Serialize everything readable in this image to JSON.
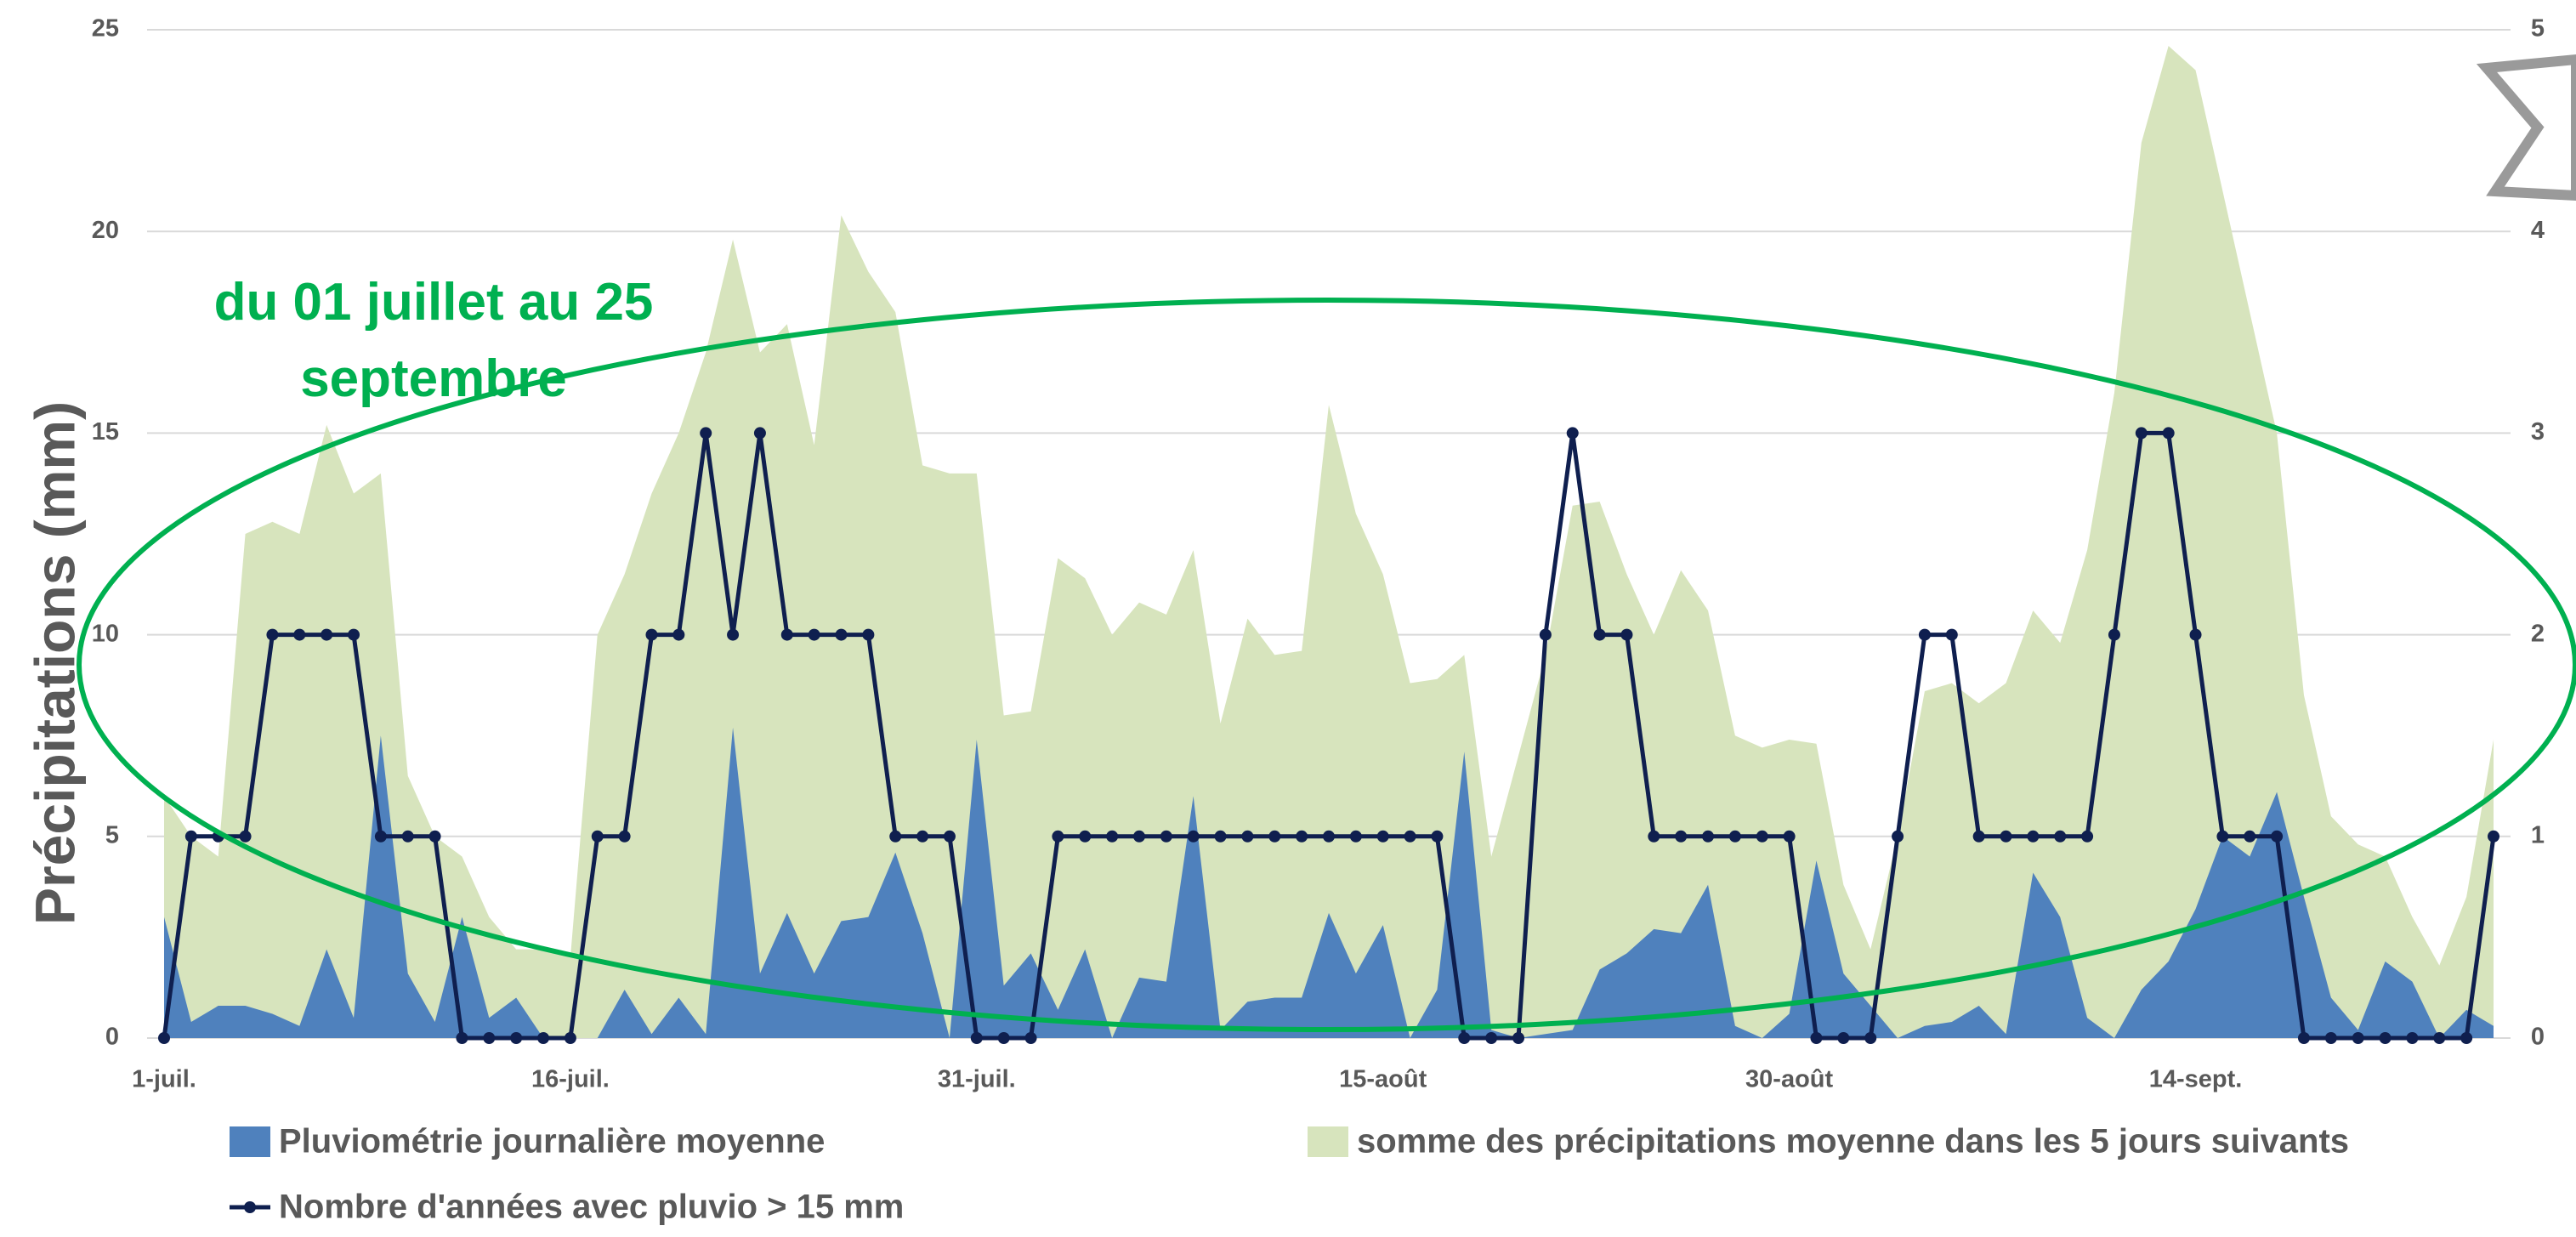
{
  "chart_data": {
    "type": "area",
    "y_label": "Précipitations (mm)",
    "annotation": "du 01 juillet au 25 septembre",
    "categories": [
      "1-juil.",
      null,
      null,
      null,
      null,
      null,
      null,
      null,
      null,
      null,
      null,
      null,
      null,
      null,
      null,
      "16-juil.",
      null,
      null,
      null,
      null,
      null,
      null,
      null,
      null,
      null,
      null,
      null,
      null,
      null,
      null,
      "31-juil.",
      null,
      null,
      null,
      null,
      null,
      null,
      null,
      null,
      null,
      null,
      null,
      null,
      null,
      null,
      "15-août",
      null,
      null,
      null,
      null,
      null,
      null,
      null,
      null,
      null,
      null,
      null,
      null,
      null,
      null,
      "30-août",
      null,
      null,
      null,
      null,
      null,
      null,
      null,
      null,
      null,
      null,
      null,
      null,
      null,
      null,
      "14-sept.",
      null,
      null,
      null,
      null,
      null,
      null,
      null,
      null,
      null,
      null,
      null
    ],
    "ylim": [
      0,
      25
    ],
    "yticks": [
      0,
      5,
      10,
      15,
      20,
      25
    ],
    "y2lim": [
      0,
      5
    ],
    "y2ticks": [
      0,
      1,
      2,
      3,
      4,
      5
    ],
    "grid": true,
    "series": [
      {
        "name": "Pluviométrie journalière moyenne",
        "type": "area",
        "color": "#4f81bd",
        "values": [
          3,
          0.4,
          0.8,
          0.8,
          0.6,
          0.3,
          2.2,
          0.5,
          7.5,
          1.6,
          0.4,
          3,
          0.5,
          1,
          0,
          0,
          0,
          1.2,
          0.1,
          1,
          0.1,
          7.7,
          1.6,
          3.1,
          1.6,
          2.9,
          3,
          4.6,
          2.6,
          0,
          7.4,
          1.3,
          2.1,
          0.7,
          2.2,
          0,
          1.5,
          1.4,
          6,
          0.2,
          0.9,
          1,
          1,
          3.1,
          1.6,
          2.8,
          0,
          1.2,
          7.1,
          0.2,
          0,
          0.1,
          0.2,
          1.7,
          2.1,
          2.7,
          2.6,
          3.8,
          0.3,
          0,
          0.6,
          4.4,
          1.6,
          0.8,
          0,
          0.3,
          0.4,
          0.8,
          0.1,
          4.1,
          3,
          0.5,
          0,
          1.2,
          1.9,
          3.2,
          5,
          4.5,
          6.1,
          3.5,
          1,
          0.2,
          1.9,
          1.4,
          0,
          0.7,
          0.3
        ]
      },
      {
        "name": "somme des précipitations moyenne dans les 5 jours suivants",
        "type": "area",
        "color": "#d7e4bd",
        "values": [
          6,
          5,
          4.5,
          12.5,
          12.8,
          12.5,
          15.2,
          13.5,
          14,
          6.5,
          5,
          4.5,
          3,
          2.2,
          2.2,
          2,
          10,
          11.5,
          13.5,
          15,
          17,
          19.8,
          17,
          17.7,
          14.7,
          20.4,
          19,
          18,
          14.2,
          14,
          14,
          8,
          8.1,
          11.9,
          11.4,
          10,
          10.8,
          10.5,
          12.1,
          7.8,
          10.4,
          9.5,
          9.6,
          15.7,
          13,
          11.5,
          8.8,
          8.9,
          9.5,
          4.5,
          7,
          9.5,
          13.2,
          13.3,
          11.5,
          10,
          11.6,
          10.6,
          7.5,
          7.2,
          7.4,
          7.3,
          3.8,
          2.2,
          5,
          8.6,
          8.8,
          8.3,
          8.8,
          10.6,
          9.8,
          12.1,
          16,
          22.2,
          24.6,
          24,
          21,
          18,
          15,
          8.5,
          5.5,
          4.8,
          4.5,
          3,
          1.8,
          3.5,
          7.4
        ]
      },
      {
        "name": "Nombre d'années avec pluvio > 15 mm",
        "type": "line",
        "axis": "y2",
        "color": "#0f1f4f",
        "values": [
          0,
          1,
          1,
          1,
          2,
          2,
          2,
          2,
          1,
          1,
          1,
          0,
          0,
          0,
          0,
          0,
          1,
          1,
          2,
          2,
          3,
          2,
          3,
          2,
          2,
          2,
          2,
          1,
          1,
          1,
          0,
          0,
          0,
          1,
          1,
          1,
          1,
          1,
          1,
          1,
          1,
          1,
          1,
          1,
          1,
          1,
          1,
          1,
          0,
          0,
          0,
          2,
          3,
          2,
          2,
          1,
          1,
          1,
          1,
          1,
          1,
          0,
          0,
          0,
          1,
          2,
          2,
          1,
          1,
          1,
          1,
          1,
          2,
          3,
          3,
          2,
          1,
          1,
          1,
          0,
          0,
          0,
          0,
          0,
          0,
          0,
          1
        ]
      }
    ]
  }
}
